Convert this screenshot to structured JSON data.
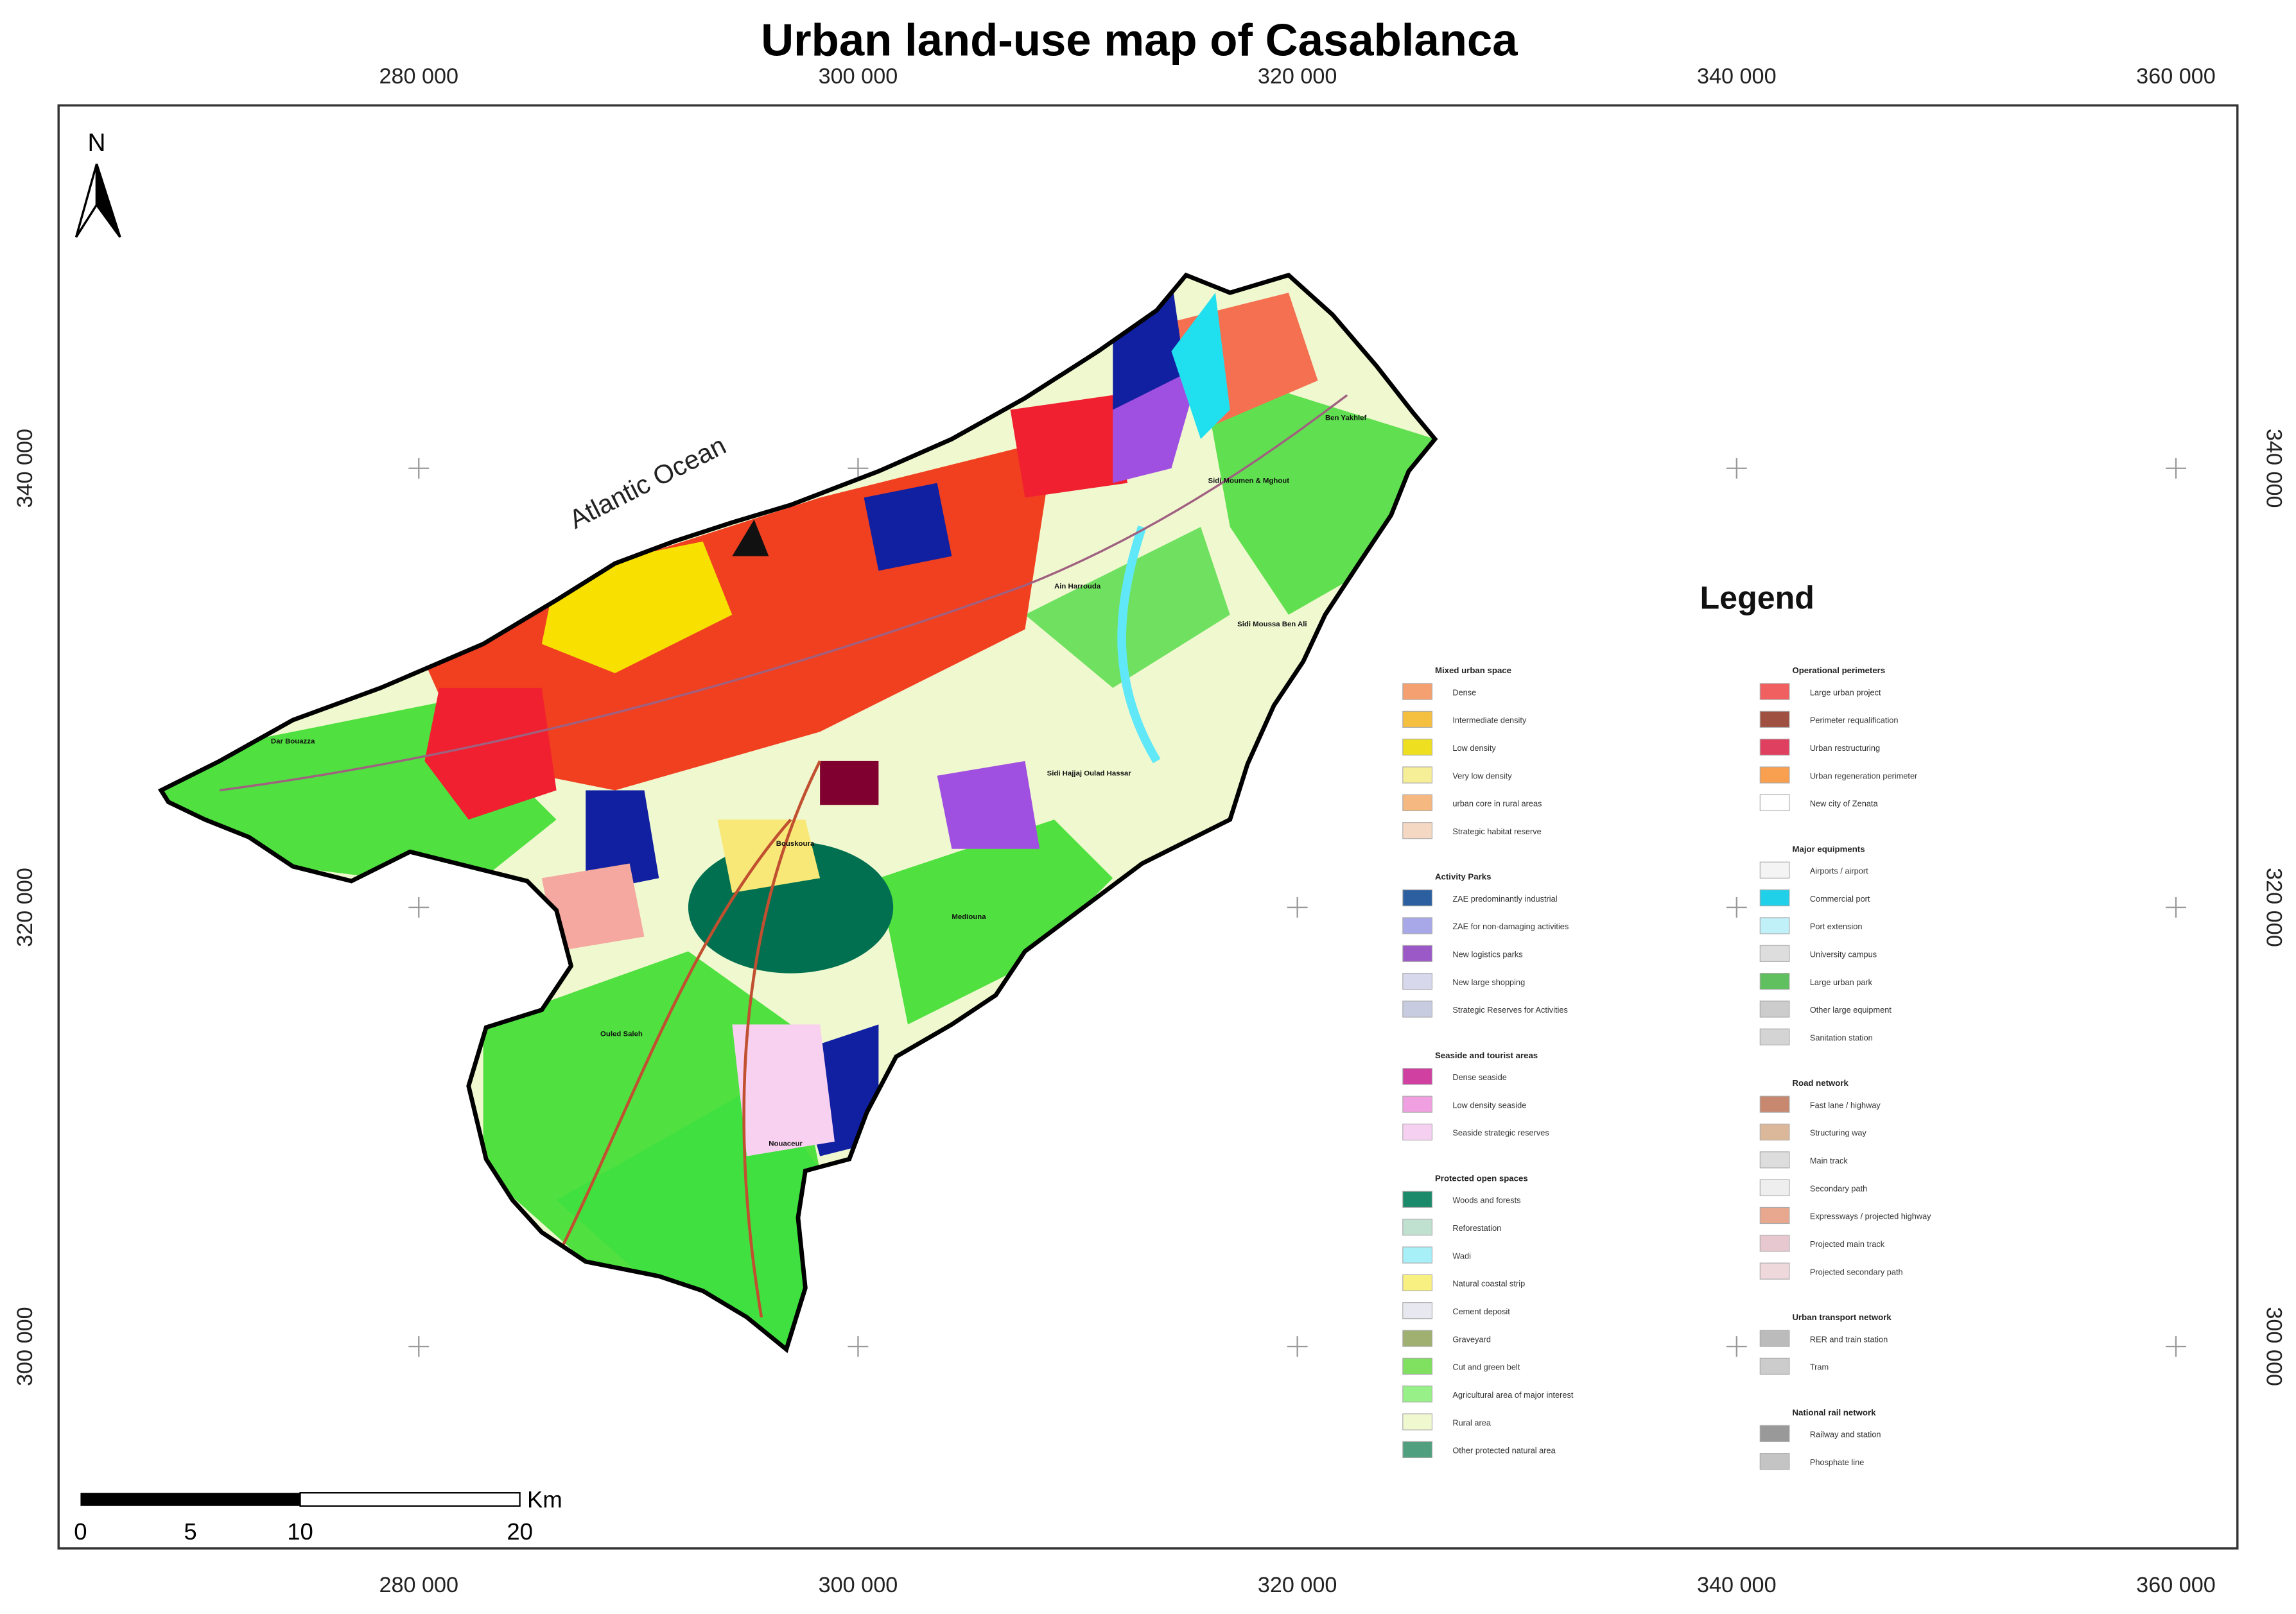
{
  "title": "Urban land-use map of Casablanca",
  "easting_labels": [
    "280 000",
    "300 000",
    "320 000",
    "340 000",
    "360 000"
  ],
  "northing_labels": [
    "340 000",
    "320 000",
    "300 000"
  ],
  "north_arrow": "N",
  "ocean_label": "Atlantic Ocean",
  "place_names": [
    "Dar Bouazza",
    "Ain Harrouda",
    "Sidi Moumen & Mghout",
    "Ben Yakhlef",
    "Sidi Moussa Ben Ali",
    "Sidi Hajjaj Oulad Hassar",
    "Bouskoura",
    "Mediouna",
    "Ouled Saleh",
    "Nouaceur"
  ],
  "scale_bar": {
    "ticks": [
      "0",
      "5",
      "10",
      "20"
    ],
    "unit": "Km"
  },
  "legend": {
    "title": "Legend",
    "columns": [
      [
        {
          "title": "Mixed urban space",
          "items": [
            {
              "label": "Dense",
              "color": "#f4a070"
            },
            {
              "label": "Intermediate density",
              "color": "#f5c040"
            },
            {
              "label": "Low density",
              "color": "#eee020"
            },
            {
              "label": "Very low density",
              "color": "#f7ef98"
            },
            {
              "label": "urban core in rural areas",
              "color": "#f5b880"
            },
            {
              "label": "Strategic habitat reserve",
              "color": "#f5d8c4"
            }
          ]
        },
        {
          "title": "Activity Parks",
          "items": [
            {
              "label": "ZAE predominantly industrial",
              "color": "#2c5fa0"
            },
            {
              "label": "ZAE for non-damaging activities",
              "color": "#a8a8e8"
            },
            {
              "label": "New logistics parks",
              "color": "#9b59c8"
            },
            {
              "label": "New large shopping",
              "color": "#d8d8ec"
            },
            {
              "label": "Strategic Reserves for Activities",
              "color": "#c8cce0"
            }
          ]
        },
        {
          "title": "Seaside and tourist areas",
          "items": [
            {
              "label": "Dense seaside",
              "color": "#d040a0"
            },
            {
              "label": "Low density seaside",
              "color": "#f0a0e0"
            },
            {
              "label": "Seaside strategic reserves",
              "color": "#f5d0f0"
            }
          ]
        },
        {
          "title": "Protected open spaces",
          "items": [
            {
              "label": "Woods and forests",
              "color": "#1a8a6a"
            },
            {
              "label": "Reforestation",
              "color": "#c0e0d0"
            },
            {
              "label": "Wadi",
              "color": "#a8f0f8"
            },
            {
              "label": "Natural coastal strip",
              "color": "#f8f080"
            },
            {
              "label": "Cement deposit",
              "color": "#e8e8f0"
            },
            {
              "label": "Graveyard",
              "color": "#a0b070"
            },
            {
              "label": "Cut and green belt",
              "color": "#80e060"
            },
            {
              "label": "Agricultural area of major interest",
              "color": "#98f088"
            },
            {
              "label": "Rural area",
              "color": "#f0f8d0"
            },
            {
              "label": "Other protected natural area",
              "color": "#50a080"
            }
          ]
        }
      ],
      [
        {
          "title": "Operational perimeters",
          "items": [
            {
              "label": "Large urban project",
              "color": "#f06060"
            },
            {
              "label": "Perimeter requalification",
              "color": "#a05040"
            },
            {
              "label": "Urban restructuring",
              "color": "#e04060"
            },
            {
              "label": "Urban regeneration perimeter",
              "color": "#f8a050"
            },
            {
              "label": "New city  of Zenata",
              "color": "#ffffff"
            }
          ]
        },
        {
          "title": "Major equipments",
          "items": [
            {
              "label": "Airports / airport",
              "color": "#f4f4f4"
            },
            {
              "label": "Commercial port",
              "color": "#20d0e8"
            },
            {
              "label": "Port extension",
              "color": "#c0f0f8"
            },
            {
              "label": "University campus",
              "color": "#dddddd"
            },
            {
              "label": "Large urban park",
              "color": "#60c060"
            },
            {
              "label": "Other large equipment",
              "color": "#cccccc"
            },
            {
              "label": "Sanitation station",
              "color": "#d4d4d4"
            }
          ]
        },
        {
          "title": "Road network",
          "items": [
            {
              "label": "Fast lane / highway",
              "color": "#c88870"
            },
            {
              "label": "Structuring way",
              "color": "#dcb89a"
            },
            {
              "label": "Main track",
              "color": "#dddddd"
            },
            {
              "label": "Secondary path",
              "color": "#eeeeee"
            },
            {
              "label": "Expressways / projected highway",
              "color": "#e8a890"
            },
            {
              "label": "Projected main track",
              "color": "#e8c8d0"
            },
            {
              "label": "Projected secondary path",
              "color": "#eed8dc"
            }
          ]
        },
        {
          "title": "Urban transport network",
          "items": [
            {
              "label": "RER and train station",
              "color": "#bbbbbb"
            },
            {
              "label": "Tram",
              "color": "#cccccc"
            }
          ]
        },
        {
          "title": "National rail network",
          "items": [
            {
              "label": "Railway and station",
              "color": "#999999"
            },
            {
              "label": "Phosphate line",
              "color": "#c4c4c4"
            }
          ]
        }
      ]
    ]
  }
}
